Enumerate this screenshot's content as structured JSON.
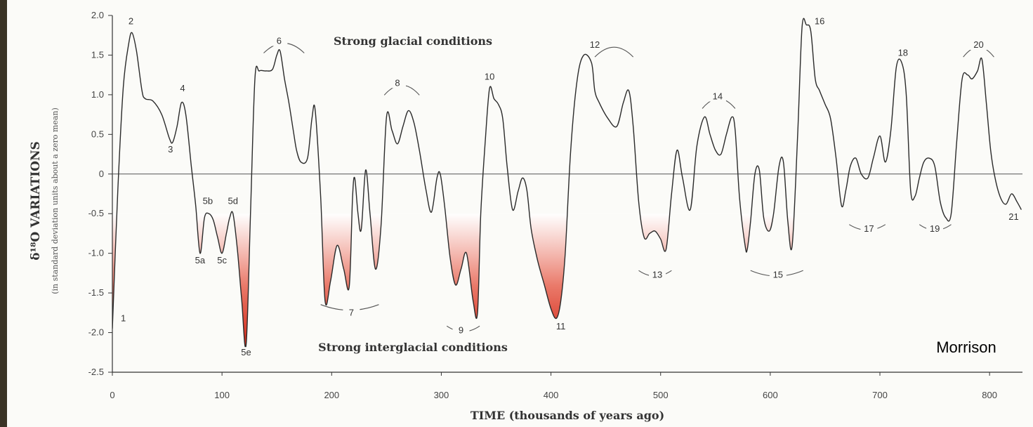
{
  "chart_data": {
    "type": "line",
    "annotations": {
      "top_caption": "Strong glacial conditions",
      "bottom_caption": "Strong interglacial conditions",
      "credit": "Morrison"
    },
    "xlabel": "TIME (thousands of years ago)",
    "ylabel_main": "δ¹⁸O VARIATIONS",
    "ylabel_sub": "(in standard deviation units about a zero mean)",
    "xlim": [
      0,
      830
    ],
    "ylim": [
      -2.5,
      2.0
    ],
    "x_ticks": [
      0,
      100,
      200,
      300,
      400,
      500,
      600,
      700,
      800
    ],
    "y_ticks": [
      2.0,
      1.5,
      1.0,
      0.5,
      0,
      -0.5,
      -1.0,
      -1.5,
      -2.0,
      -2.5
    ],
    "y_tick_labels": [
      "2.0",
      "1.5",
      "1.0",
      "0.5",
      "0",
      "-0.5",
      "-1.0",
      "-1.5",
      "-2.0",
      "-2.5"
    ],
    "series": [
      {
        "x": [
          0,
          5,
          10,
          15,
          18,
          22,
          27,
          30,
          37,
          45,
          52,
          55,
          59,
          63,
          67,
          72,
          76,
          80,
          84,
          88,
          92,
          96,
          100,
          104,
          107,
          110,
          114,
          118,
          122,
          126,
          130,
          134,
          140,
          146,
          150,
          153,
          157,
          161,
          165,
          168,
          172,
          178,
          182,
          185,
          190,
          194,
          199,
          205,
          211,
          216,
          219,
          221,
          224,
          227,
          231,
          235,
          240,
          245,
          250,
          255,
          260,
          265,
          270,
          275,
          280,
          286,
          291,
          296,
          299,
          303,
          308,
          313,
          318,
          323,
          329,
          333,
          336,
          340,
          344,
          348,
          352,
          356,
          360,
          365,
          370,
          374,
          378,
          382,
          388,
          394,
          400,
          405,
          409,
          413,
          418,
          424,
          430,
          437,
          440,
          444,
          452,
          460,
          466,
          471,
          475,
          480,
          485,
          490,
          495,
          500,
          505,
          510,
          515,
          520,
          527,
          533,
          540,
          545,
          550,
          555,
          560,
          565,
          568,
          572,
          577,
          579,
          582,
          586,
          590,
          594,
          599,
          603,
          608,
          612,
          616,
          620,
          625,
          629,
          633,
          637,
          641,
          645,
          650,
          655,
          660,
          665,
          669,
          673,
          678,
          683,
          689,
          694,
          700,
          705,
          710,
          715,
          720,
          724,
          728,
          732,
          736,
          740,
          745,
          750,
          755,
          760,
          765,
          770,
          775,
          780,
          784,
          789,
          793,
          797,
          801,
          805,
          810,
          815,
          820,
          825,
          829
        ],
        "values": [
          -1.95,
          -0.2,
          1.1,
          1.65,
          1.78,
          1.55,
          1.05,
          0.95,
          0.92,
          0.75,
          0.45,
          0.4,
          0.6,
          0.9,
          0.75,
          0.1,
          -0.4,
          -1.0,
          -0.55,
          -0.5,
          -0.58,
          -0.8,
          -1.0,
          -0.75,
          -0.55,
          -0.5,
          -0.95,
          -1.6,
          -2.15,
          -0.5,
          1.2,
          1.3,
          1.3,
          1.32,
          1.5,
          1.55,
          1.2,
          0.9,
          0.55,
          0.3,
          0.15,
          0.2,
          0.7,
          0.8,
          -0.3,
          -1.6,
          -1.35,
          -0.9,
          -1.2,
          -1.42,
          -0.3,
          -0.05,
          -0.5,
          -0.7,
          0.05,
          -0.5,
          -1.2,
          -0.65,
          0.72,
          0.55,
          0.38,
          0.6,
          0.8,
          0.65,
          0.3,
          -0.2,
          -0.48,
          -0.05,
          0.0,
          -0.4,
          -1.05,
          -1.4,
          -1.2,
          -1.0,
          -1.6,
          -1.75,
          -0.5,
          0.4,
          1.08,
          0.95,
          0.88,
          0.7,
          0.1,
          -0.45,
          -0.22,
          -0.05,
          -0.2,
          -0.7,
          -1.1,
          -1.4,
          -1.7,
          -1.82,
          -1.6,
          -1.0,
          0.3,
          1.2,
          1.5,
          1.4,
          1.05,
          0.9,
          0.7,
          0.6,
          0.9,
          1.05,
          0.6,
          -0.35,
          -0.8,
          -0.75,
          -0.72,
          -0.82,
          -0.95,
          -0.25,
          0.3,
          -0.05,
          -0.45,
          0.35,
          0.72,
          0.5,
          0.3,
          0.25,
          0.5,
          0.72,
          0.55,
          -0.3,
          -0.9,
          -0.95,
          -0.6,
          0.0,
          0.05,
          -0.55,
          -0.72,
          -0.5,
          0.1,
          0.15,
          -0.6,
          -0.9,
          0.5,
          1.85,
          1.88,
          1.8,
          1.2,
          1.05,
          0.88,
          0.7,
          0.2,
          -0.4,
          -0.2,
          0.1,
          0.2,
          0.0,
          -0.05,
          0.2,
          0.48,
          0.15,
          0.55,
          1.35,
          1.4,
          1.0,
          -0.2,
          -0.28,
          -0.05,
          0.15,
          0.2,
          0.1,
          -0.35,
          -0.55,
          -0.5,
          0.4,
          1.2,
          1.25,
          1.2,
          1.3,
          1.45,
          0.9,
          0.3,
          -0.05,
          -0.3,
          -0.38,
          -0.25,
          -0.35,
          -0.45
        ]
      }
    ],
    "labels": [
      {
        "text": "1",
        "x": 10,
        "y": -1.85
      },
      {
        "text": "2",
        "x": 17,
        "y": 1.9
      },
      {
        "text": "3",
        "x": 53,
        "y": 0.28
      },
      {
        "text": "4",
        "x": 64,
        "y": 1.05
      },
      {
        "text": "5a",
        "x": 80,
        "y": -1.12
      },
      {
        "text": "5b",
        "x": 87,
        "y": -0.37
      },
      {
        "text": "5c",
        "x": 100,
        "y": -1.12
      },
      {
        "text": "5d",
        "x": 110,
        "y": -0.37
      },
      {
        "text": "5e",
        "x": 122,
        "y": -2.28
      },
      {
        "text": "6",
        "x": 152,
        "y": 1.65
      },
      {
        "text": "7",
        "x": 218,
        "y": -1.78
      },
      {
        "text": "8",
        "x": 260,
        "y": 1.12
      },
      {
        "text": "9",
        "x": 318,
        "y": -2.0
      },
      {
        "text": "10",
        "x": 344,
        "y": 1.2
      },
      {
        "text": "11",
        "x": 409,
        "y": -1.95
      },
      {
        "text": "12",
        "x": 440,
        "y": 1.6
      },
      {
        "text": "13",
        "x": 497,
        "y": -1.3
      },
      {
        "text": "14",
        "x": 552,
        "y": 0.95
      },
      {
        "text": "15",
        "x": 607,
        "y": -1.3
      },
      {
        "text": "16",
        "x": 645,
        "y": 1.9
      },
      {
        "text": "17",
        "x": 690,
        "y": -0.72
      },
      {
        "text": "18",
        "x": 721,
        "y": 1.5
      },
      {
        "text": "19",
        "x": 750,
        "y": -0.72
      },
      {
        "text": "20",
        "x": 790,
        "y": 1.6
      },
      {
        "text": "21",
        "x": 822,
        "y": -0.57
      }
    ],
    "arcs": [
      {
        "label": "6",
        "x0": 138,
        "x1": 175
      },
      {
        "label": "8",
        "x0": 248,
        "x1": 280
      },
      {
        "label": "12",
        "x0": 440,
        "x1": 475
      },
      {
        "label": "14",
        "x0": 538,
        "x1": 568
      },
      {
        "label": "20",
        "x0": 776,
        "x1": 804
      }
    ],
    "lower_arcs": [
      {
        "label": "7",
        "x0": 190,
        "x1": 243,
        "y": -1.7
      },
      {
        "label": "9",
        "x0": 305,
        "x1": 335,
        "y": -1.97
      },
      {
        "label": "13",
        "x0": 480,
        "x1": 510,
        "y": -1.27
      },
      {
        "label": "15",
        "x0": 582,
        "x1": 630,
        "y": -1.27
      },
      {
        "label": "17",
        "x0": 672,
        "x1": 705,
        "y": -0.69
      },
      {
        "label": "19",
        "x0": 736,
        "x1": 765,
        "y": -0.69
      }
    ],
    "shade_threshold": -0.5,
    "colors": {
      "line": "#2a2a2a",
      "shade": "#d42a1a",
      "plot_bg": "#fbfbf8",
      "frame_bg": "#1d1a14"
    }
  }
}
